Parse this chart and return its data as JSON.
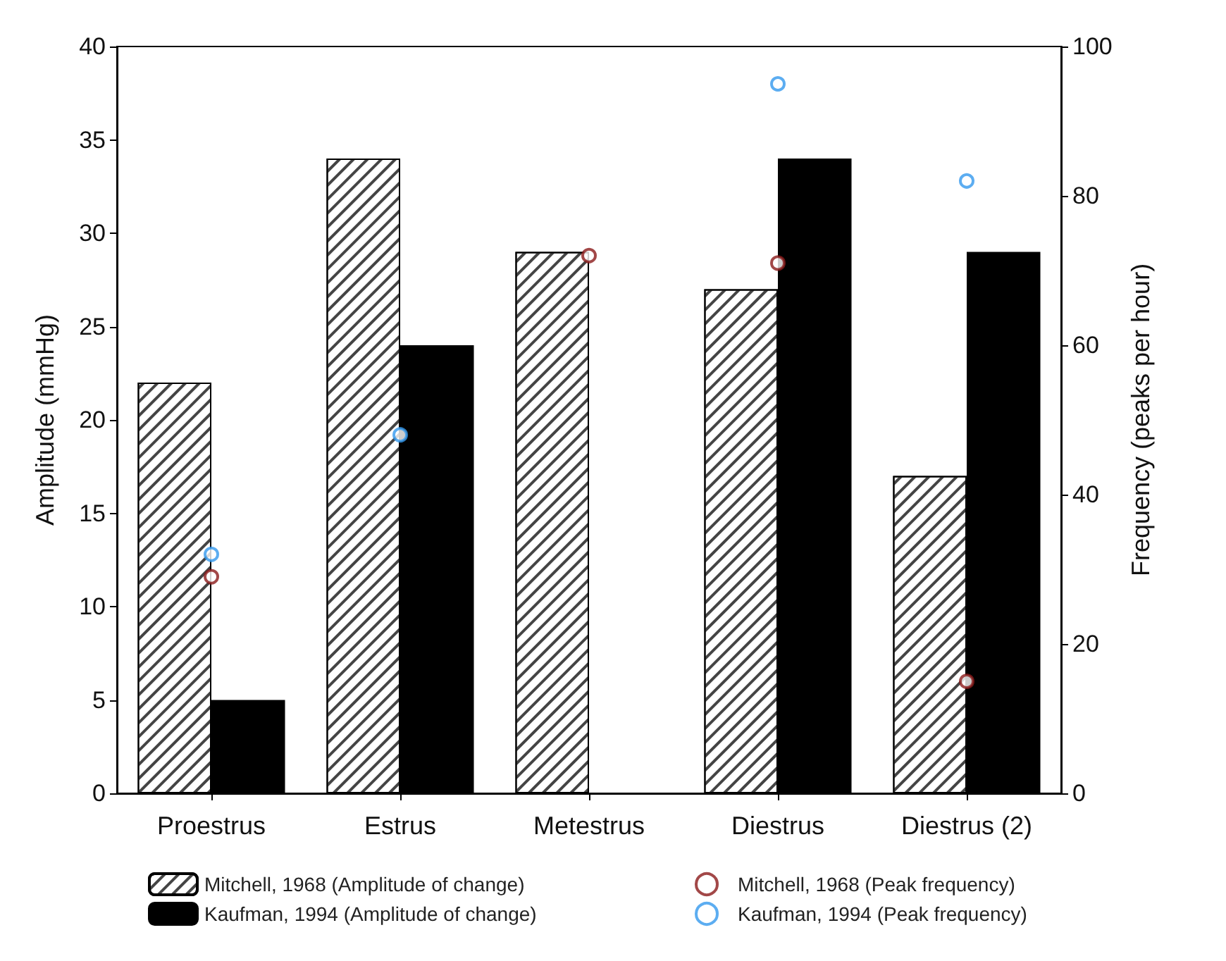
{
  "chart_data": {
    "type": "bar",
    "categories": [
      "Proestrus",
      "Estrus",
      "Metestrus",
      "Diestrus",
      "Diestrus (2)"
    ],
    "ylabel": "Amplitude (mmHg)",
    "y2label": "Frequency (peaks per hour)",
    "ylim": [
      0,
      40
    ],
    "yticks": [
      0,
      5,
      10,
      15,
      20,
      25,
      30,
      35,
      40
    ],
    "y2lim": [
      0,
      100
    ],
    "y2ticks": [
      0,
      20,
      40,
      60,
      80,
      100
    ],
    "series": [
      {
        "name": "Mitchell, 1968 (Amplitude of change)",
        "color": "#ffffff",
        "values": [
          22,
          34,
          29,
          27,
          17
        ]
      },
      {
        "name": "Kaufman, 1994 (Amplitude of change)",
        "color": "#000000",
        "values": [
          5,
          24,
          null,
          34,
          29
        ]
      },
      {
        "name": "Mitchell, 1968 (Peak frequency)",
        "type": "scatter",
        "axis": "y2",
        "color": "#8b1a1a",
        "values": [
          29,
          null,
          72,
          71,
          15
        ]
      },
      {
        "name": "Kaufman, 1994 (Peak frequency)",
        "type": "scatter",
        "axis": "y2",
        "color": "#3399ee",
        "values": [
          32,
          48,
          null,
          95,
          82
        ]
      }
    ],
    "marker": "circle",
    "grid": false,
    "legend": "bottom"
  }
}
